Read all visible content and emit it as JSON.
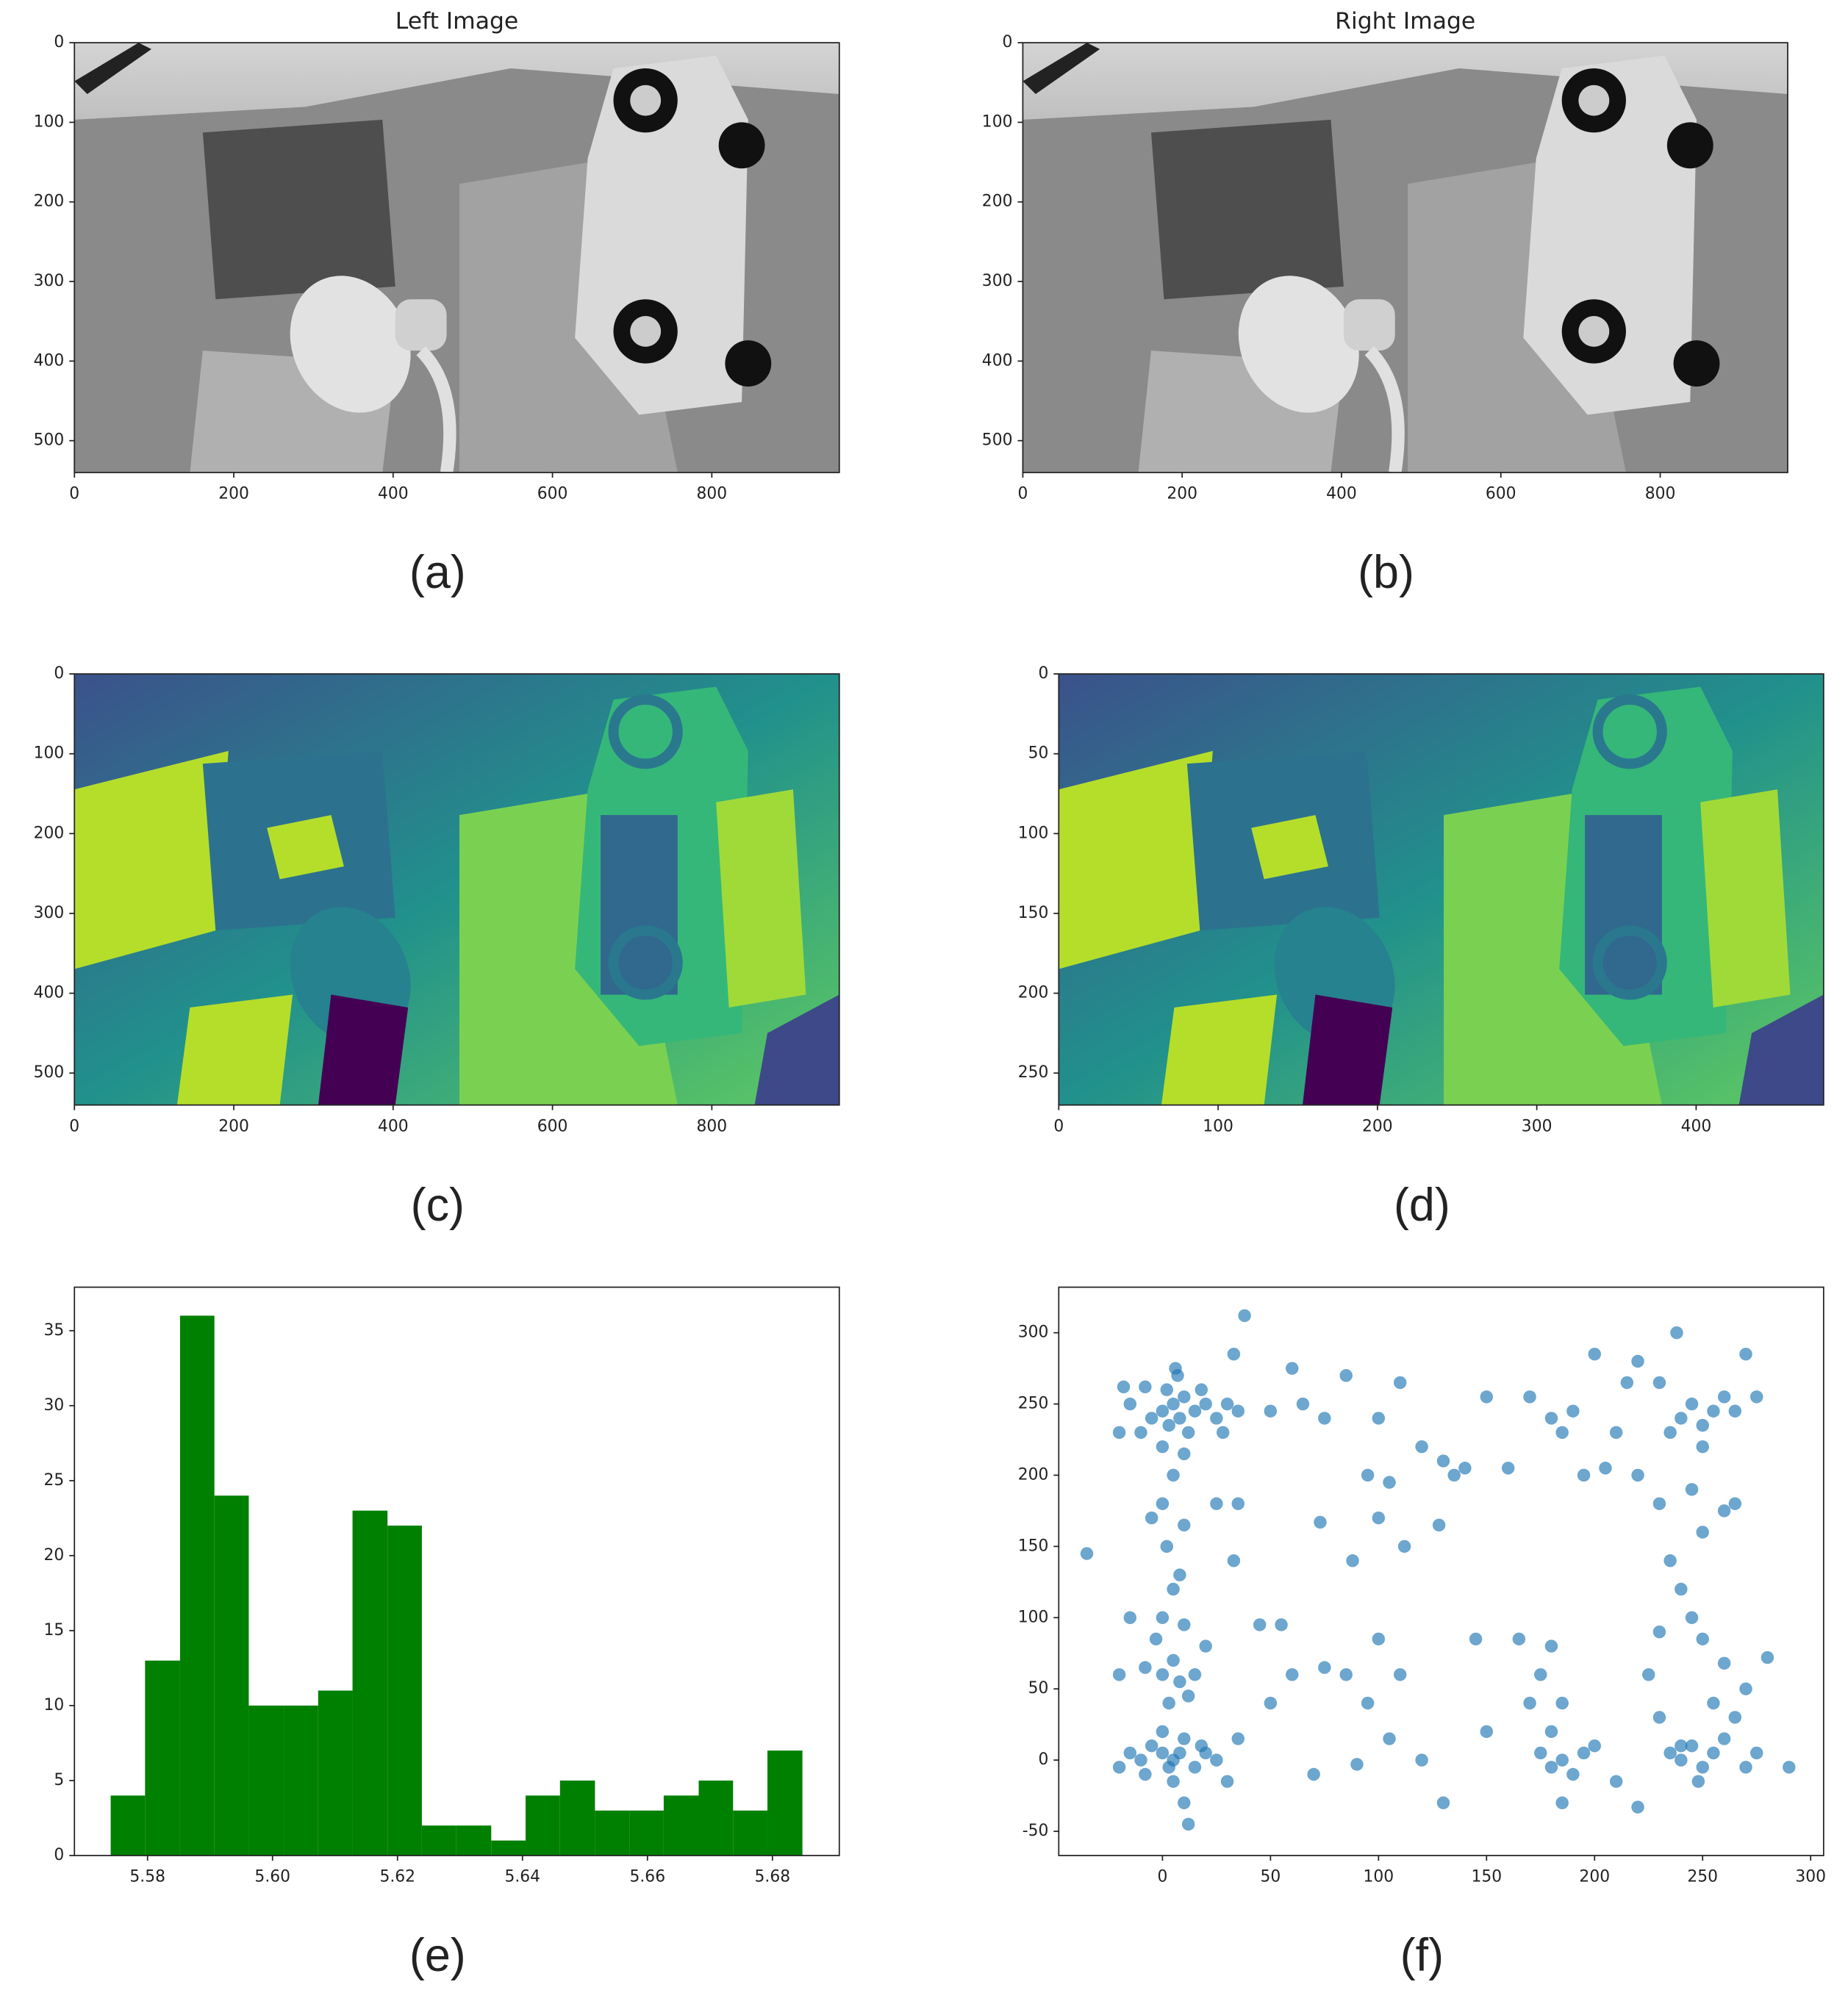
{
  "chart_data": [
    {
      "type": "image",
      "title": "Left Image",
      "caption": "(a)",
      "xlim": [
        0,
        960
      ],
      "ylim": [
        540,
        0
      ],
      "xticks": [
        0,
        200,
        400,
        600,
        800
      ],
      "yticks": [
        0,
        100,
        200,
        300,
        400,
        500
      ]
    },
    {
      "type": "image",
      "title": "Right Image",
      "caption": "(b)",
      "xlim": [
        0,
        960
      ],
      "ylim": [
        540,
        0
      ],
      "xticks": [
        0,
        200,
        400,
        600,
        800
      ],
      "yticks": [
        0,
        100,
        200,
        300,
        400,
        500
      ]
    },
    {
      "type": "image",
      "caption": "(c)",
      "xlim": [
        0,
        960
      ],
      "ylim": [
        540,
        0
      ],
      "xticks": [
        0,
        200,
        400,
        600,
        800
      ],
      "yticks": [
        0,
        100,
        200,
        300,
        400,
        500
      ]
    },
    {
      "type": "image",
      "caption": "(d)",
      "xlim": [
        0,
        480
      ],
      "ylim": [
        270,
        0
      ],
      "xticks": [
        0,
        100,
        200,
        300,
        400
      ],
      "yticks": [
        0,
        50,
        100,
        150,
        200,
        250
      ]
    },
    {
      "type": "histogram",
      "caption": "(e)",
      "color": "#008000",
      "bins": [
        5.5741,
        5.5796,
        5.5852,
        5.5907,
        5.5962,
        5.6018,
        5.6073,
        5.6128,
        5.6184,
        5.6239,
        5.6294,
        5.635,
        5.6405,
        5.646,
        5.6516,
        5.6571,
        5.6626,
        5.6682,
        5.6737,
        5.6792,
        5.6848
      ],
      "values": [
        4,
        13,
        36,
        24,
        10,
        10,
        11,
        23,
        22,
        2,
        2,
        1,
        4,
        5,
        3,
        3,
        4,
        5,
        3,
        7
      ],
      "xlim": [
        5.5683,
        5.6907
      ],
      "ylim": [
        0,
        37.9
      ],
      "xticks": [
        5.58,
        {
          "value": 5.6,
          "label": "5.60"
        },
        5.62,
        5.64,
        5.66,
        5.68
      ],
      "yticks": [
        0,
        5,
        10,
        15,
        20,
        25,
        30,
        35
      ]
    },
    {
      "type": "scatter",
      "caption": "(f)",
      "color": "#1f77b4",
      "x": [
        0,
        5,
        8,
        3,
        10,
        -5,
        12,
        15,
        2,
        7,
        -10,
        20,
        25,
        30,
        -15,
        0,
        10,
        -20,
        35,
        18,
        6,
        -8,
        28,
        33,
        38,
        -18,
        5,
        0,
        10,
        -5,
        2,
        8,
        5,
        0,
        10,
        -3,
        5,
        0,
        8,
        -8,
        15,
        -15,
        20,
        -20,
        3,
        12,
        25,
        35,
        33,
        -35,
        0,
        5,
        -5,
        10,
        3,
        8,
        -10,
        15,
        0,
        -15,
        20,
        5,
        10,
        12,
        25,
        30,
        -8,
        18,
        35,
        -20,
        50,
        60,
        65,
        75,
        85,
        100,
        95,
        100,
        105,
        110,
        120,
        130,
        135,
        140,
        150,
        160,
        170,
        180,
        185,
        190,
        195,
        200,
        55,
        60,
        75,
        85,
        95,
        100,
        110,
        120,
        130,
        105,
        90,
        70,
        45,
        50,
        145,
        165,
        150,
        88,
        73,
        112,
        128,
        175,
        180,
        185,
        190,
        195,
        200,
        180,
        185,
        175,
        180,
        170,
        185,
        210,
        220,
        235,
        240,
        245,
        250,
        255,
        260,
        230,
        265,
        270,
        275,
        290,
        280,
        240,
        248,
        260,
        255,
        240,
        245,
        250,
        255,
        235,
        260,
        230,
        250,
        265,
        270,
        275,
        220,
        215,
        238,
        245,
        230,
        250,
        235,
        240,
        260,
        245,
        230,
        250,
        225,
        220,
        210,
        205,
        270,
        265
      ],
      "values": [
        245,
        250,
        240,
        235,
        255,
        240,
        230,
        245,
        260,
        270,
        230,
        250,
        240,
        250,
        250,
        220,
        215,
        230,
        245,
        260,
        275,
        262,
        230,
        285,
        312,
        262,
        200,
        180,
        165,
        170,
        150,
        130,
        120,
        100,
        95,
        85,
        70,
        60,
        55,
        65,
        60,
        100,
        80,
        60,
        40,
        45,
        180,
        180,
        140,
        145,
        5,
        0,
        10,
        15,
        -5,
        5,
        0,
        -5,
        20,
        5,
        5,
        -15,
        -30,
        -45,
        0,
        -15,
        -10,
        10,
        15,
        -5,
        245,
        275,
        250,
        240,
        270,
        240,
        200,
        170,
        195,
        265,
        220,
        210,
        200,
        205,
        255,
        205,
        255,
        240,
        230,
        245,
        200,
        285,
        95,
        60,
        65,
        60,
        40,
        85,
        60,
        0,
        -30,
        15,
        -3,
        -10,
        95,
        40,
        85,
        85,
        20,
        140,
        167,
        150,
        165,
        5,
        -5,
        0,
        -10,
        5,
        10,
        20,
        40,
        60,
        80,
        40,
        -30,
        -15,
        -33,
        5,
        0,
        10,
        -5,
        5,
        15,
        30,
        30,
        -5,
        5,
        -5,
        72,
        10,
        -15,
        68,
        40,
        240,
        250,
        235,
        245,
        230,
        255,
        265,
        220,
        245,
        285,
        255,
        280,
        265,
        300,
        190,
        180,
        160,
        140,
        120,
        175,
        100,
        90,
        85,
        60,
        200,
        230,
        205,
        50,
        180
      ],
      "xlim": [
        -48,
        306
      ],
      "ylim": [
        -67,
        332
      ],
      "xticks": [
        0,
        50,
        100,
        150,
        200,
        250,
        300
      ],
      "yticks": [
        -50,
        0,
        50,
        100,
        150,
        200,
        250,
        300
      ]
    }
  ]
}
